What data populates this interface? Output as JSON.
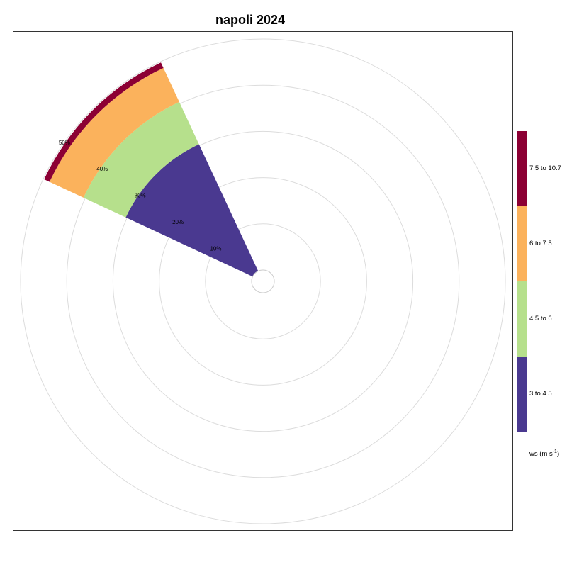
{
  "chart_data": {
    "type": "wind-rose",
    "title": "napoli 2024",
    "direction_bin": {
      "center_deg": 315,
      "width_deg": 40
    },
    "radial_axis": {
      "unit": "%",
      "ticks": [
        "10%",
        "20%",
        "30%",
        "40%",
        "50%"
      ],
      "max": 50
    },
    "series": [
      {
        "name": "3 to 4.5",
        "color": "#4a3990",
        "cumulative_percent": 30.3
      },
      {
        "name": "4.5 to 6",
        "color": "#b6e08c",
        "cumulative_percent": 40.4
      },
      {
        "name": "6 to 7.5",
        "color": "#fbb25c",
        "cumulative_percent": 48.5
      },
      {
        "name": "7.5 to 10.7",
        "color": "#8c0034",
        "cumulative_percent": 49.8
      }
    ],
    "legend": {
      "title": "ws (m s",
      "title_sup": "-1",
      "title_close": ")",
      "placement": "right"
    },
    "grid": true
  }
}
